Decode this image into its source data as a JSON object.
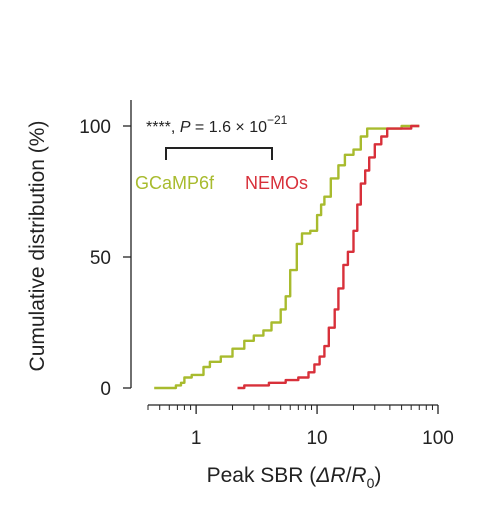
{
  "chart_data": {
    "type": "line",
    "xlabel_main": "Peak SBR (",
    "xlabel_delta": "ΔR",
    "xlabel_slash": "/",
    "xlabel_r": "R",
    "xlabel_sub": "0",
    "xlabel_close": ")",
    "ylabel": "Cumulative distribution (%)",
    "x_scale": "log",
    "xlim": [
      0.4,
      100
    ],
    "ylim": [
      0,
      100
    ],
    "x_ticks": [
      1,
      10,
      100
    ],
    "x_tick_labels": [
      "1",
      "10",
      "100"
    ],
    "y_ticks": [
      0,
      50,
      100
    ],
    "y_tick_labels": [
      "0",
      "50",
      "100"
    ],
    "grid": false,
    "annotation": {
      "stars": "****,",
      "p_label": "P",
      "p_value": " = 1.6 × 10",
      "p_exponent": "−21"
    },
    "series": [
      {
        "name": "GCaMP6f",
        "color": "#a8bb2e",
        "points": [
          [
            0.45,
            0
          ],
          [
            0.62,
            0
          ],
          [
            0.68,
            1
          ],
          [
            0.75,
            2
          ],
          [
            0.8,
            4
          ],
          [
            0.92,
            5
          ],
          [
            1.05,
            5
          ],
          [
            1.15,
            8
          ],
          [
            1.3,
            10
          ],
          [
            1.6,
            12
          ],
          [
            2.0,
            15
          ],
          [
            2.5,
            18
          ],
          [
            3.0,
            20
          ],
          [
            3.6,
            22
          ],
          [
            4.2,
            25
          ],
          [
            5.0,
            30
          ],
          [
            5.5,
            35
          ],
          [
            6.0,
            45
          ],
          [
            6.8,
            55
          ],
          [
            7.5,
            59
          ],
          [
            8.8,
            60
          ],
          [
            10.0,
            66
          ],
          [
            10.8,
            70
          ],
          [
            11.5,
            73
          ],
          [
            13.0,
            80
          ],
          [
            15.0,
            85
          ],
          [
            17.0,
            89
          ],
          [
            20.0,
            91
          ],
          [
            23.0,
            96
          ],
          [
            26.0,
            99
          ],
          [
            45.0,
            99
          ],
          [
            50.0,
            100
          ],
          [
            70.0,
            100
          ]
        ]
      },
      {
        "name": "NEMOs",
        "color": "#d8303a",
        "points": [
          [
            2.2,
            0
          ],
          [
            2.5,
            1
          ],
          [
            3.5,
            1
          ],
          [
            4.0,
            2
          ],
          [
            5.5,
            3
          ],
          [
            7.0,
            4
          ],
          [
            8.5,
            6
          ],
          [
            9.5,
            9
          ],
          [
            10.5,
            12
          ],
          [
            11.5,
            16
          ],
          [
            12.5,
            23
          ],
          [
            14.0,
            30
          ],
          [
            15.0,
            38
          ],
          [
            16.5,
            47
          ],
          [
            18.0,
            52
          ],
          [
            20.0,
            60
          ],
          [
            21.5,
            70
          ],
          [
            23.0,
            78
          ],
          [
            25.0,
            83
          ],
          [
            27.0,
            88
          ],
          [
            30.0,
            93
          ],
          [
            34.0,
            96
          ],
          [
            38.0,
            99
          ],
          [
            48.0,
            99
          ],
          [
            60.0,
            100
          ],
          [
            70.0,
            100
          ]
        ]
      }
    ]
  }
}
